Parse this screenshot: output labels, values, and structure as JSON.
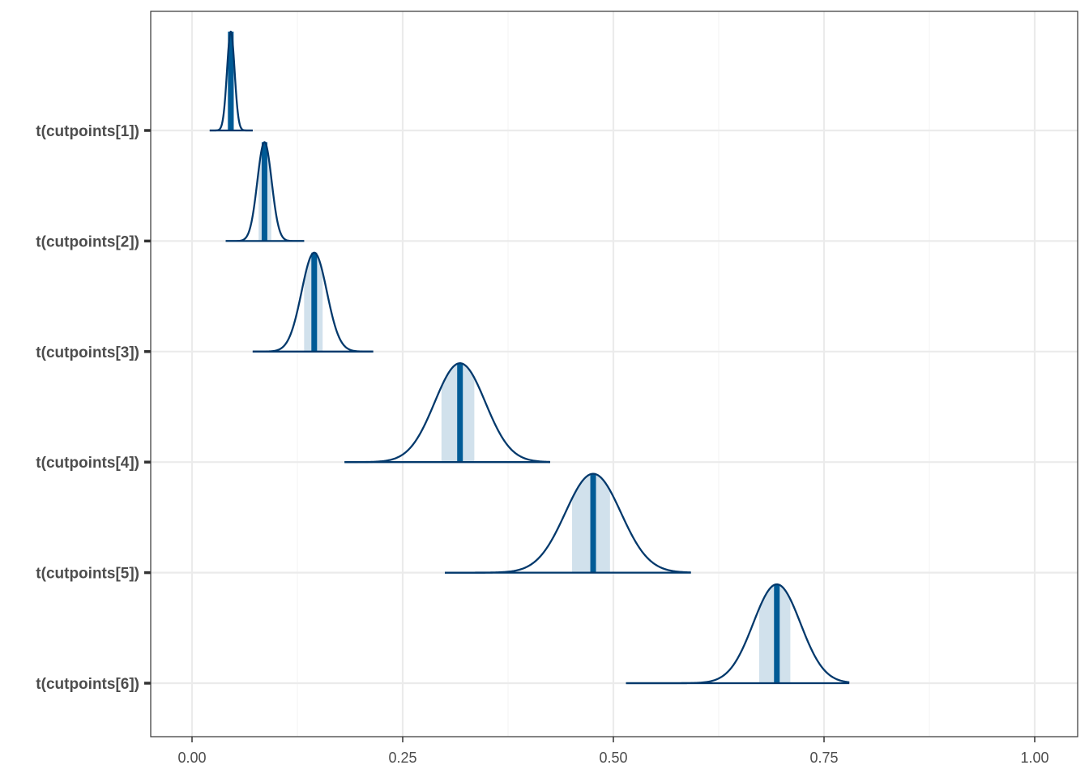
{
  "chart_data": {
    "type": "ridgeline",
    "title": "",
    "xlabel": "",
    "ylabel": "",
    "xlim": [
      0,
      1
    ],
    "x_ticks": [
      0,
      0.25,
      0.5,
      0.75,
      1
    ],
    "x_tick_labels": [
      "0.00",
      "0.25",
      "0.50",
      "0.75",
      "1.00"
    ],
    "grid": true,
    "colors": {
      "line": "#03396c",
      "median": "#005b96",
      "interval": "#d1e1ec",
      "grid_major": "#ebebeb",
      "grid_minor": "#f5f5f5"
    },
    "series": [
      {
        "label": "t(cutpoints[1])",
        "median": 0.046,
        "interval": [
          0.042,
          0.05
        ],
        "range": [
          0.021,
          0.072
        ],
        "sd": 0.0045
      },
      {
        "label": "t(cutpoints[2])",
        "median": 0.086,
        "interval": [
          0.079,
          0.094
        ],
        "range": [
          0.04,
          0.133
        ],
        "sd": 0.0085
      },
      {
        "label": "t(cutpoints[3])",
        "median": 0.145,
        "interval": [
          0.133,
          0.155
        ],
        "range": [
          0.072,
          0.215
        ],
        "sd": 0.015
      },
      {
        "label": "t(cutpoints[4])",
        "median": 0.318,
        "interval": [
          0.296,
          0.335
        ],
        "range": [
          0.181,
          0.425
        ],
        "sd": 0.03
      },
      {
        "label": "t(cutpoints[5])",
        "median": 0.476,
        "interval": [
          0.451,
          0.496
        ],
        "range": [
          0.3,
          0.592
        ],
        "sd": 0.033
      },
      {
        "label": "t(cutpoints[6])",
        "median": 0.694,
        "interval": [
          0.673,
          0.71
        ],
        "range": [
          0.515,
          0.78
        ],
        "sd": 0.028
      }
    ]
  }
}
